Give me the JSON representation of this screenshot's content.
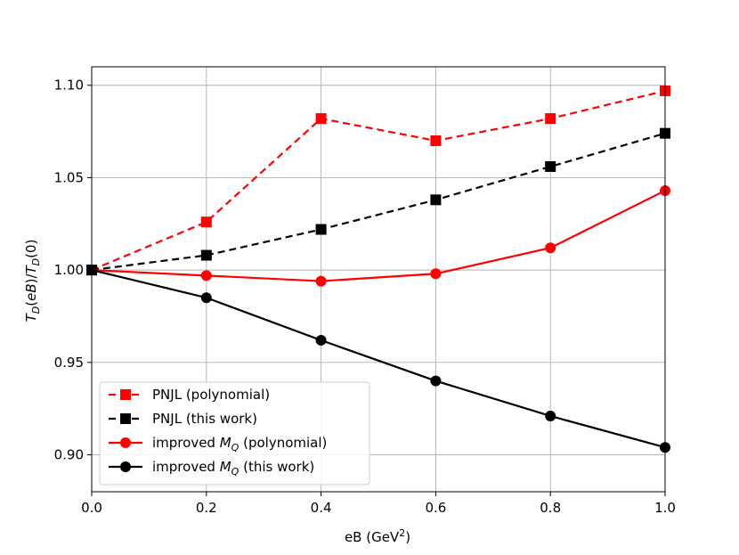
{
  "chart_data": {
    "type": "line",
    "title": "",
    "xlabel": "eB (GeV",
    "xlabel_sup": "2",
    "xlabel_close": ")",
    "ylabel": "T_D(eB)/T_D(0)",
    "xlim": [
      0.0,
      1.0
    ],
    "ylim": [
      0.88,
      1.11
    ],
    "xticks": [
      0.0,
      0.2,
      0.4,
      0.6,
      0.8,
      1.0
    ],
    "xtick_labels": [
      "0.0",
      "0.2",
      "0.4",
      "0.6",
      "0.8",
      "1.0"
    ],
    "yticks": [
      0.9,
      0.95,
      1.0,
      1.05,
      1.1
    ],
    "ytick_labels": [
      "0.90",
      "0.95",
      "1.00",
      "1.05",
      "1.10"
    ],
    "grid": true,
    "legend_position": "lower-left",
    "x": [
      0.0,
      0.2,
      0.4,
      0.6,
      0.8,
      1.0
    ],
    "series": [
      {
        "name": "PNJL (polynomial)",
        "legend_main": "PNJL (polynomial)",
        "legend_sub": "",
        "legend_tail": "",
        "color": "#ff0000",
        "dash": true,
        "marker": "square",
        "values": [
          1.0,
          1.026,
          1.082,
          1.07,
          1.082,
          1.097
        ]
      },
      {
        "name": "PNJL (this work)",
        "legend_main": "PNJL (this work)",
        "legend_sub": "",
        "legend_tail": "",
        "color": "#000000",
        "dash": true,
        "marker": "square",
        "values": [
          1.0,
          1.008,
          1.022,
          1.038,
          1.056,
          1.074
        ]
      },
      {
        "name": "improved M_Q (polynomial)",
        "legend_main": "improved M",
        "legend_sub": "Q",
        "legend_tail": " (polynomial)",
        "color": "#ff0000",
        "dash": false,
        "marker": "circle",
        "values": [
          1.0,
          0.997,
          0.994,
          0.998,
          1.012,
          1.043
        ]
      },
      {
        "name": "improved M_Q (this work)",
        "legend_main": "improved M",
        "legend_sub": "Q",
        "legend_tail": " (this work)",
        "color": "#000000",
        "dash": false,
        "marker": "circle",
        "values": [
          1.0,
          0.985,
          0.962,
          0.94,
          0.921,
          0.904
        ]
      }
    ]
  }
}
